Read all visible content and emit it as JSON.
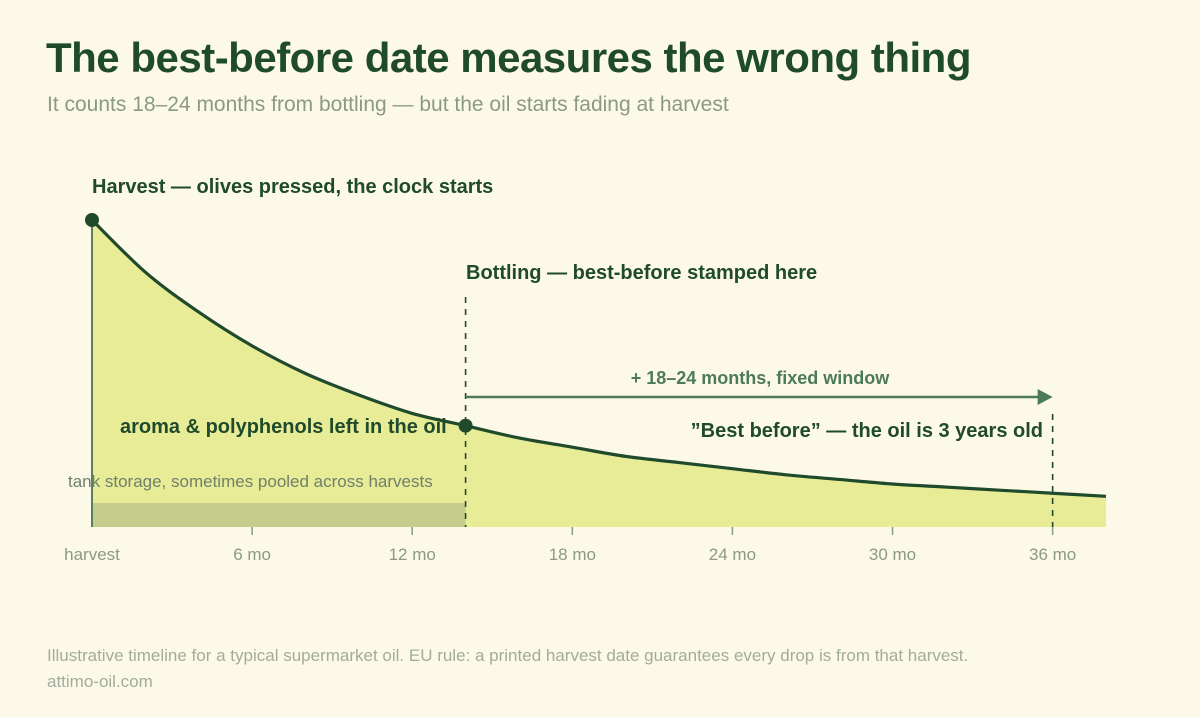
{
  "title": "The best-before date measures the wrong thing",
  "subtitle": "It counts 18–24 months from bottling — but the oil starts fading at harvest",
  "footnote": "Illustrative timeline for a typical supermarket oil. EU rule: a printed harvest date guarantees every drop is from that harvest.",
  "source": "attimo-oil.com",
  "colors": {
    "background": "#fdf9e8",
    "area_fill": "#e5ea88",
    "curve": "#1f4a2c",
    "storage_band": "#c5cc8c",
    "arrow": "#4c7a5a",
    "axis_text": "#8a9a86"
  },
  "chart_data": {
    "type": "area",
    "x_unit": "months since harvest",
    "xlim": [
      0,
      38
    ],
    "ylim": [
      0,
      1
    ],
    "x_ticks": [
      {
        "value": 0,
        "label": "harvest"
      },
      {
        "value": 6,
        "label": "6 mo"
      },
      {
        "value": 12,
        "label": "12 mo"
      },
      {
        "value": 18,
        "label": "18 mo"
      },
      {
        "value": 24,
        "label": "24 mo"
      },
      {
        "value": 30,
        "label": "30 mo"
      },
      {
        "value": 36,
        "label": "36 mo"
      }
    ],
    "series": [
      {
        "name": "aroma & polyphenols left in the oil",
        "x": [
          0,
          2,
          4,
          6,
          8,
          10,
          12,
          14,
          16,
          18,
          20,
          22,
          24,
          26,
          28,
          30,
          32,
          34,
          36,
          38
        ],
        "y": [
          1.0,
          0.83,
          0.7,
          0.59,
          0.5,
          0.43,
          0.37,
          0.33,
          0.29,
          0.26,
          0.23,
          0.21,
          0.19,
          0.17,
          0.155,
          0.14,
          0.13,
          0.12,
          0.11,
          0.1
        ]
      }
    ],
    "storage_band": {
      "x_start": 0,
      "x_end": 14,
      "label": "tank storage, sometimes pooled across harvests"
    },
    "annotations": {
      "harvest": {
        "x": 0,
        "label": "Harvest — olives pressed, the clock starts"
      },
      "bottling": {
        "x": 14,
        "label": "Bottling — best-before stamped here"
      },
      "window": {
        "x_start": 14,
        "x_end": 36,
        "label": "+ 18–24 months, fixed window"
      },
      "best_before": {
        "x": 36,
        "label": "”Best before” — the oil is 3 years old"
      },
      "area_label": "aroma & polyphenols left in the oil"
    }
  }
}
